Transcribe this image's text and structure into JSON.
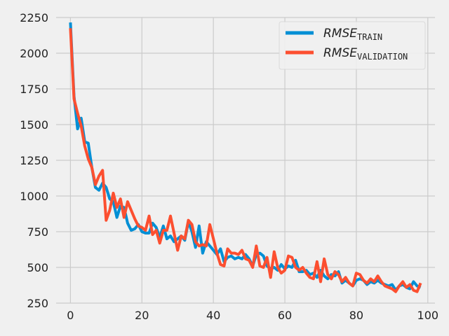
{
  "chart_data": {
    "type": "line",
    "title": "",
    "xlabel": "",
    "ylabel": "",
    "xlim": [
      -4,
      102
    ],
    "ylim": [
      250,
      2250
    ],
    "xticks": [
      0,
      20,
      40,
      60,
      80,
      100
    ],
    "yticks": [
      250,
      500,
      750,
      1000,
      1250,
      1500,
      1750,
      2000,
      2250
    ],
    "grid": true,
    "legend_position": "top-right",
    "background": "#f0f0f0",
    "grid_color": "#cbcbcb",
    "series": [
      {
        "name": "RMSE_TRAIN",
        "legend_main": "RMSE",
        "legend_sub": "TRAIN",
        "color": "#008fd5",
        "x": [
          0,
          1,
          2,
          3,
          4,
          5,
          6,
          7,
          8,
          9,
          10,
          11,
          12,
          13,
          14,
          15,
          16,
          17,
          18,
          19,
          20,
          21,
          22,
          23,
          24,
          25,
          26,
          27,
          28,
          29,
          30,
          31,
          32,
          33,
          34,
          35,
          36,
          37,
          38,
          39,
          40,
          41,
          42,
          43,
          44,
          45,
          46,
          47,
          48,
          49,
          50,
          51,
          52,
          53,
          54,
          55,
          56,
          57,
          58,
          59,
          60,
          61,
          62,
          63,
          64,
          65,
          66,
          67,
          68,
          69,
          70,
          71,
          72,
          73,
          74,
          75,
          76,
          77,
          78,
          79,
          80,
          81,
          82,
          83,
          84,
          85,
          86,
          87,
          88,
          89,
          90,
          91,
          92,
          93,
          94,
          95,
          96,
          97,
          98
        ],
        "y": [
          2215,
          1700,
          1470,
          1545,
          1380,
          1370,
          1200,
          1060,
          1040,
          1090,
          1060,
          980,
          960,
          850,
          930,
          920,
          810,
          760,
          770,
          800,
          750,
          740,
          740,
          810,
          780,
          710,
          790,
          700,
          720,
          680,
          700,
          720,
          690,
          820,
          750,
          640,
          790,
          600,
          680,
          650,
          620,
          590,
          630,
          540,
          570,
          580,
          560,
          570,
          560,
          590,
          560,
          510,
          590,
          600,
          580,
          510,
          490,
          500,
          480,
          520,
          490,
          510,
          500,
          550,
          470,
          470,
          480,
          450,
          460,
          430,
          480,
          440,
          420,
          450,
          440,
          470,
          390,
          410,
          390,
          370,
          410,
          420,
          410,
          380,
          400,
          390,
          410,
          390,
          380,
          370,
          380,
          340,
          370,
          380,
          360,
          350,
          400,
          370,
          360
        ]
      },
      {
        "name": "RMSE_VALIDATION",
        "legend_main": "RMSE",
        "legend_sub": "VALIDATION",
        "color": "#fc4f30",
        "x": [
          0,
          1,
          2,
          3,
          4,
          5,
          6,
          7,
          8,
          9,
          10,
          11,
          12,
          13,
          14,
          15,
          16,
          17,
          18,
          19,
          20,
          21,
          22,
          23,
          24,
          25,
          26,
          27,
          28,
          29,
          30,
          31,
          32,
          33,
          34,
          35,
          36,
          37,
          38,
          39,
          40,
          41,
          42,
          43,
          44,
          45,
          46,
          47,
          48,
          49,
          50,
          51,
          52,
          53,
          54,
          55,
          56,
          57,
          58,
          59,
          60,
          61,
          62,
          63,
          64,
          65,
          66,
          67,
          68,
          69,
          70,
          71,
          72,
          73,
          74,
          75,
          76,
          77,
          78,
          79,
          80,
          81,
          82,
          83,
          84,
          85,
          86,
          87,
          88,
          89,
          90,
          91,
          92,
          93,
          94,
          95,
          96,
          97,
          98
        ],
        "y": [
          2175,
          1680,
          1580,
          1490,
          1350,
          1260,
          1200,
          1080,
          1140,
          1180,
          830,
          900,
          1020,
          920,
          980,
          850,
          960,
          900,
          840,
          790,
          780,
          760,
          860,
          730,
          760,
          670,
          760,
          760,
          860,
          740,
          620,
          720,
          700,
          830,
          800,
          680,
          650,
          660,
          650,
          800,
          700,
          600,
          520,
          510,
          630,
          600,
          600,
          590,
          620,
          560,
          550,
          500,
          650,
          510,
          500,
          570,
          430,
          610,
          500,
          460,
          480,
          580,
          570,
          500,
          480,
          500,
          460,
          430,
          420,
          540,
          400,
          560,
          450,
          420,
          470,
          450,
          400,
          430,
          390,
          370,
          460,
          450,
          410,
          390,
          420,
          400,
          440,
          400,
          370,
          360,
          350,
          330,
          370,
          400,
          360,
          380,
          340,
          330,
          390
        ]
      }
    ]
  }
}
